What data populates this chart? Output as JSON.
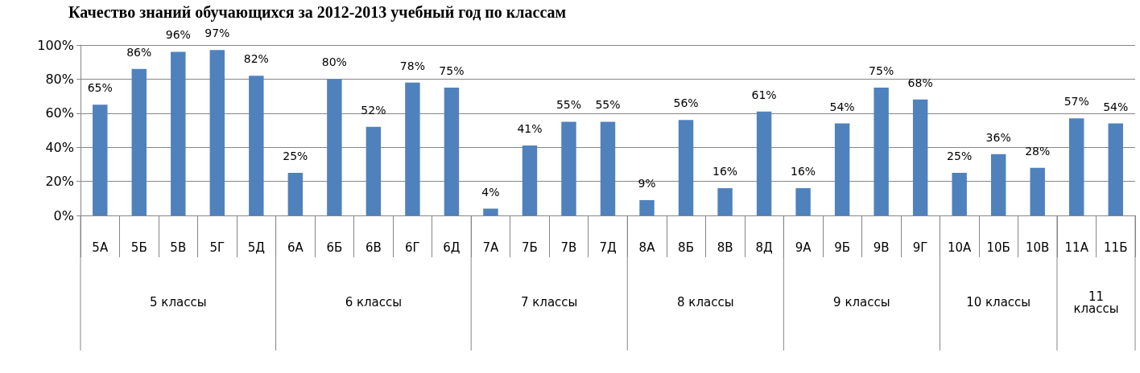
{
  "chart_data": {
    "type": "bar",
    "title": "Качество знаний обучающихся за 2012-2013 учебный год по классам",
    "categories": [
      "5А",
      "5Б",
      "5В",
      "5Г",
      "5Д",
      "6А",
      "6Б",
      "6В",
      "6Г",
      "6Д",
      "7А",
      "7Б",
      "7В",
      "7Д",
      "8А",
      "8Б",
      "8В",
      "8Д",
      "9А",
      "9Б",
      "9В",
      "9Г",
      "10А",
      "10Б",
      "10В",
      "11А",
      "11Б"
    ],
    "values": [
      65,
      86,
      96,
      97,
      82,
      25,
      80,
      52,
      78,
      75,
      4,
      41,
      55,
      55,
      9,
      56,
      16,
      61,
      16,
      54,
      75,
      68,
      25,
      36,
      28,
      57,
      54
    ],
    "value_labels": [
      "65%",
      "86%",
      "96%",
      "97%",
      "82%",
      "25%",
      "80%",
      "52%",
      "78%",
      "75%",
      "4%",
      "41%",
      "55%",
      "55%",
      "9%",
      "56%",
      "16%",
      "61%",
      "16%",
      "54%",
      "75%",
      "68%",
      "25%",
      "36%",
      "28%",
      "57%",
      "54%"
    ],
    "color": "#4f81bd",
    "ylim": [
      0,
      100
    ],
    "yticks": [
      {
        "value": 0,
        "label": "0%"
      },
      {
        "value": 20,
        "label": "20%"
      },
      {
        "value": 40,
        "label": "40%"
      },
      {
        "value": 60,
        "label": "60%"
      },
      {
        "value": 80,
        "label": "80%"
      },
      {
        "value": 100,
        "label": "100%"
      }
    ],
    "grid": "y",
    "annotations": [
      "5 классы",
      "6 классы",
      "7 классы",
      "8 классы",
      "9 классы",
      "10 классы",
      "11\nклассы"
    ]
  }
}
